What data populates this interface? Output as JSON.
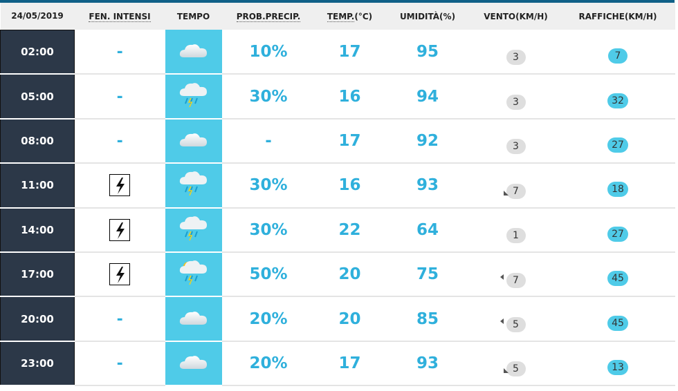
{
  "header": {
    "date": "24/05/2019",
    "fen": "FEN. INTENSI",
    "tempo": "TEMPO",
    "prob": "PROB.PRECIP.",
    "temp_abbr": "TEMP.",
    "temp_unit": "(°C)",
    "umid": "UMIDITÀ(%)",
    "vento": "VENTO(KM/H)",
    "raffiche": "RAFFICHE(KM/H)"
  },
  "colors": {
    "accent": "#2fb0dc",
    "time_bg": "#2c3848",
    "tempo_bg": "#4fcbe8"
  },
  "rows": [
    {
      "time": "02:00",
      "fen": "-",
      "storm": false,
      "icon": "cloud-icon",
      "prob": "10%",
      "temp": "17",
      "umid": "95",
      "vento": "3",
      "dir": "",
      "raffiche": "7"
    },
    {
      "time": "05:00",
      "fen": "-",
      "storm": false,
      "icon": "cloud-rain-thunder-icon",
      "prob": "30%",
      "temp": "16",
      "umid": "94",
      "vento": "3",
      "dir": "",
      "raffiche": "32"
    },
    {
      "time": "08:00",
      "fen": "-",
      "storm": false,
      "icon": "cloud-icon",
      "prob": "-",
      "temp": "17",
      "umid": "92",
      "vento": "3",
      "dir": "",
      "raffiche": "27"
    },
    {
      "time": "11:00",
      "fen": "",
      "storm": true,
      "icon": "cloud-rain-thunder-icon",
      "prob": "30%",
      "temp": "16",
      "umid": "93",
      "vento": "7",
      "dir": "sw",
      "raffiche": "18"
    },
    {
      "time": "14:00",
      "fen": "",
      "storm": true,
      "icon": "cloud-rain-thunder-icon",
      "prob": "30%",
      "temp": "22",
      "umid": "64",
      "vento": "1",
      "dir": "",
      "raffiche": "27"
    },
    {
      "time": "17:00",
      "fen": "",
      "storm": true,
      "icon": "sun-cloud-rain-thunder-icon",
      "prob": "50%",
      "temp": "20",
      "umid": "75",
      "vento": "7",
      "dir": "w",
      "raffiche": "45"
    },
    {
      "time": "20:00",
      "fen": "-",
      "storm": false,
      "icon": "cloud-icon",
      "prob": "20%",
      "temp": "20",
      "umid": "85",
      "vento": "5",
      "dir": "w",
      "raffiche": "45"
    },
    {
      "time": "23:00",
      "fen": "-",
      "storm": false,
      "icon": "cloud-icon",
      "prob": "20%",
      "temp": "17",
      "umid": "93",
      "vento": "5",
      "dir": "sw",
      "raffiche": "13"
    }
  ]
}
